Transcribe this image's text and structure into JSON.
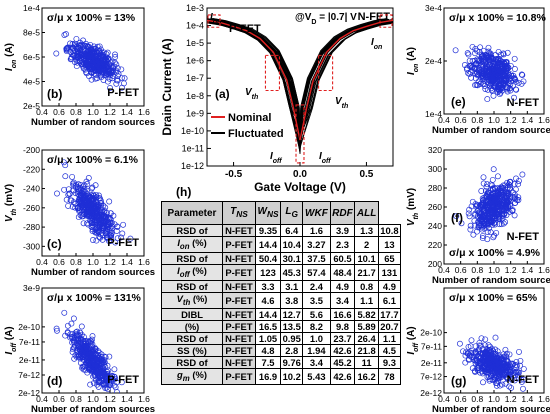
{
  "chart_data": [
    {
      "id": "b",
      "type": "scatter",
      "panel_label": "(b)",
      "annotation": "σ/μ x 100% = 13%",
      "device": "P-FET",
      "xlabel": "Number of random sources",
      "ylabel": "I_on (A)",
      "xlim": [
        0.4,
        1.6
      ],
      "ylim": [
        2e-05,
        0.0001
      ],
      "yscale": "linear",
      "xticks": [
        "0.4",
        "0.6",
        "0.8",
        "1.0",
        "1.2",
        "1.4",
        "1.6"
      ],
      "yticks": [
        "2e-5",
        "4e-5",
        "6e-5",
        "8e-5",
        "1e-4"
      ],
      "cloud": {
        "x_mean": 1.0,
        "x_sd": 0.13,
        "y_mean": 5.7e-05,
        "y_sd": 7.4e-06,
        "corr": -0.6,
        "n": 420
      }
    },
    {
      "id": "c",
      "type": "scatter",
      "panel_label": "(c)",
      "annotation": "σ/μ x 100% = 6.1%",
      "device": "P-FET",
      "xlabel": "Number of random sources",
      "ylabel": "V_th (mV)",
      "xlim": [
        0.4,
        1.6
      ],
      "ylim": [
        -310,
        -200
      ],
      "yscale": "linear",
      "xticks": [
        "0.4",
        "0.6",
        "0.8",
        "1.0",
        "1.2",
        "1.4",
        "1.6"
      ],
      "yticks": [
        "-200",
        "-220",
        "-240",
        "-260",
        "-280",
        "-300"
      ],
      "cloud": {
        "x_mean": 1.0,
        "x_sd": 0.13,
        "y_mean": -263,
        "y_sd": 14,
        "corr": -0.7,
        "n": 420
      }
    },
    {
      "id": "d",
      "type": "scatter",
      "panel_label": "(d)",
      "annotation": "σ/μ x 100% = 131%",
      "device": "P-FET",
      "xlabel": "Number of random sources",
      "ylabel": "I_off (A)",
      "xlim": [
        0.4,
        1.6
      ],
      "ylim": [
        2e-12,
        3e-09
      ],
      "yscale": "log",
      "xticks": [
        "0.4",
        "0.6",
        "0.8",
        "1.0",
        "1.2",
        "1.4",
        "1.6"
      ],
      "yticks": [
        "3e-9",
        "2e-10",
        "7e-11",
        "2e-11",
        "7e-12",
        "2e-12"
      ],
      "cloud": {
        "x_mean": 0.98,
        "x_sd": 0.13,
        "y_log_mean": -10.7,
        "y_log_sd": 0.45,
        "corr": -0.8,
        "n": 420
      }
    },
    {
      "id": "e",
      "type": "scatter",
      "panel_label": "(e)",
      "annotation": "σ/μ x 100% = 10.8%",
      "device": "N-FET",
      "xlabel": "Number of random sources",
      "ylabel": "I_on (A)",
      "xlim": [
        0.4,
        1.6
      ],
      "ylim": [
        0.0001,
        0.0003
      ],
      "yscale": "linear",
      "xticks": [
        "0.4",
        "0.6",
        "0.8",
        "1.0",
        "1.2",
        "1.4",
        "1.6"
      ],
      "yticks": [
        "1e-4",
        "2e-4",
        "3e-4"
      ],
      "cloud": {
        "x_mean": 1.0,
        "x_sd": 0.13,
        "y_mean": 0.00018,
        "y_sd": 1.9e-05,
        "corr": -0.4,
        "n": 420
      }
    },
    {
      "id": "f",
      "type": "scatter",
      "panel_label": "(f)",
      "annotation": "σ/μ x 100% = 4.9%",
      "device": "N-FET",
      "xlabel": "Number of random sources",
      "ylabel": "V_th (mV)",
      "xlim": [
        0.4,
        1.6
      ],
      "ylim": [
        200,
        320
      ],
      "yscale": "linear",
      "xticks": [
        "0.4",
        "0.6",
        "0.8",
        "1.0",
        "1.2",
        "1.4",
        "1.6"
      ],
      "yticks": [
        "200",
        "220",
        "240",
        "260",
        "280",
        "300",
        "320"
      ],
      "cloud": {
        "x_mean": 1.0,
        "x_sd": 0.13,
        "y_mean": 260,
        "y_sd": 13,
        "corr": 0.5,
        "n": 420
      }
    },
    {
      "id": "g",
      "type": "scatter",
      "panel_label": "(g)",
      "annotation": "σ/μ x 100% = 65%",
      "device": "N-FET",
      "xlabel": "Number of random sources",
      "ylabel": "I_off (A)",
      "xlim": [
        0.4,
        1.6
      ],
      "ylim": [
        2e-12,
        6e-09
      ],
      "yscale": "log",
      "xticks": [
        "0.4",
        "0.6",
        "0.8",
        "1.0",
        "1.2",
        "1.4",
        "1.6"
      ],
      "yticks": [
        "2e-10",
        "7e-11",
        "2e-11",
        "7e-12",
        "2e-12"
      ],
      "cloud": {
        "x_mean": 1.0,
        "x_sd": 0.14,
        "y_log_mean": -10.75,
        "y_log_sd": 0.28,
        "corr": -0.5,
        "n": 420
      }
    },
    {
      "id": "a",
      "type": "line",
      "panel_label": "(a)",
      "condition": "@V_D = |0.7| V",
      "xlabel": "Gate Voltage (V)",
      "ylabel": "Drain Current (A)",
      "xlim": [
        -0.7,
        0.7
      ],
      "ylim": [
        1e-12,
        0.001
      ],
      "yscale": "log",
      "xticks": [
        "-0.5",
        "0.0",
        "0.5"
      ],
      "yticks": [
        "1e-3",
        "1e-4",
        "1e-5",
        "1e-6",
        "1e-7",
        "1e-8",
        "1e-9",
        "1e-10",
        "1e-11",
        "1e-12"
      ],
      "labels": {
        "pfet": "P-FET",
        "nfet": "N-FET",
        "ion": "I_on",
        "vth": "V_th",
        "ioff": "I_off"
      },
      "legend": [
        {
          "name": "Nominal",
          "color": "#e02020"
        },
        {
          "name": "Fluctuated",
          "color": "#000000"
        }
      ],
      "nominal_pfet": {
        "x": [
          -0.7,
          -0.6,
          -0.5,
          -0.4,
          -0.3,
          -0.2,
          -0.1,
          -0.05,
          0
        ],
        "y": [
          0.0002,
          0.00015,
          9e-05,
          5e-05,
          1.8e-05,
          3e-06,
          8e-08,
          2e-09,
          3e-11
        ]
      },
      "nominal_nfet": {
        "x": [
          0,
          0.05,
          0.1,
          0.2,
          0.3,
          0.4,
          0.5,
          0.6,
          0.7
        ],
        "y": [
          3e-11,
          2e-09,
          8e-08,
          3e-06,
          1.8e-05,
          5e-05,
          9e-05,
          0.00015,
          0.0002
        ]
      },
      "highlights": [
        "I_on at |V_G| = 0.7 V",
        "V_th",
        "I_off at V_G = 0 V"
      ]
    }
  ],
  "table": {
    "panel_label": "(h)",
    "header": [
      "Parameter",
      "T_NS",
      "W_NS",
      "L_G",
      "WKF",
      "RDF",
      "ALL"
    ],
    "rows": [
      {
        "param": [
          "RSD of",
          "I_on (%)"
        ],
        "nfet": [
          "N-FET",
          "9.35",
          "6.4",
          "1.6",
          "3.9",
          "1.3",
          "10.8"
        ],
        "pfet": [
          "P-FET",
          "14.4",
          "10.4",
          "3.27",
          "2.3",
          "2",
          "13"
        ]
      },
      {
        "param": [
          "RSD of",
          "I_off (%)"
        ],
        "nfet": [
          "N-FET",
          "50.4",
          "30.1",
          "37.5",
          "60.5",
          "10.1",
          "65"
        ],
        "pfet": [
          "P-FET",
          "123",
          "45.3",
          "57.4",
          "48.4",
          "21.7",
          "131"
        ]
      },
      {
        "param": [
          "RSD of",
          "V_th (%)"
        ],
        "nfet": [
          "N-FET",
          "3.3",
          "3.1",
          "2.4",
          "4.9",
          "0.8",
          "4.9"
        ],
        "pfet": [
          "P-FET",
          "4.6",
          "3.8",
          "3.5",
          "3.4",
          "1.1",
          "6.1"
        ]
      },
      {
        "param": [
          "DIBL",
          "(%)"
        ],
        "nfet": [
          "N-FET",
          "14.4",
          "12.7",
          "5.6",
          "16.6",
          "5.82",
          "17.7"
        ],
        "pfet": [
          "P-FET",
          "16.5",
          "13.5",
          "8.2",
          "9.8",
          "5.89",
          "20.7"
        ]
      },
      {
        "param": [
          "RSD of",
          "SS (%)"
        ],
        "nfet": [
          "N-FET",
          "1.05",
          "0.95",
          "1.0",
          "23.7",
          "26.4",
          "1.1"
        ],
        "pfet": [
          "P-FET",
          "4.8",
          "2.8",
          "1.94",
          "42.6",
          "21.8",
          "4.5"
        ]
      },
      {
        "param": [
          "RSD of",
          "g_m (%)"
        ],
        "nfet": [
          "N-FET",
          "7.5",
          "9.76",
          "3.4",
          "45.2",
          "11",
          "9.3"
        ],
        "pfet": [
          "P-FET",
          "16.9",
          "10.2",
          "5.43",
          "42.6",
          "16.2",
          "78"
        ]
      }
    ]
  }
}
